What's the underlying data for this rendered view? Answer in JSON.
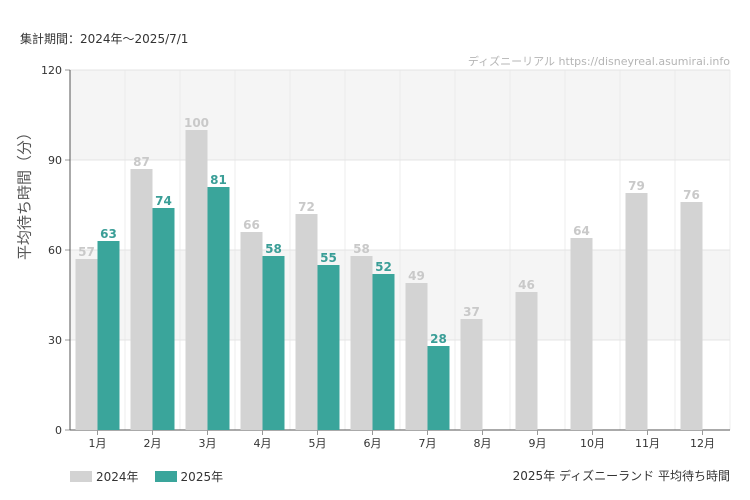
{
  "header": {
    "period": "集計期間：2024年〜2025/7/1",
    "watermark": "ディズニーリアル https://disneyreal.asumirai.info",
    "subtitle": "2025年 ディズニーランド 平均待ち時間"
  },
  "colors": {
    "series_2024": "#d3d3d3",
    "series_2025": "#3aa59b",
    "band": "#f5f5f5"
  },
  "chart_data": {
    "type": "bar",
    "ylabel": "平均待ち時間（分）",
    "ylim": [
      0,
      120
    ],
    "yticks": [
      0,
      30,
      60,
      90,
      120
    ],
    "categories": [
      "1月",
      "2月",
      "3月",
      "4月",
      "5月",
      "6月",
      "7月",
      "8月",
      "9月",
      "10月",
      "11月",
      "12月"
    ],
    "series": [
      {
        "name": "2024年",
        "values": [
          57,
          87,
          100,
          66,
          72,
          58,
          49,
          37,
          46,
          64,
          79,
          76
        ]
      },
      {
        "name": "2025年",
        "values": [
          63,
          74,
          81,
          58,
          55,
          52,
          28,
          null,
          null,
          null,
          null,
          null
        ]
      }
    ],
    "grid": true,
    "legend": "bottom-left"
  }
}
